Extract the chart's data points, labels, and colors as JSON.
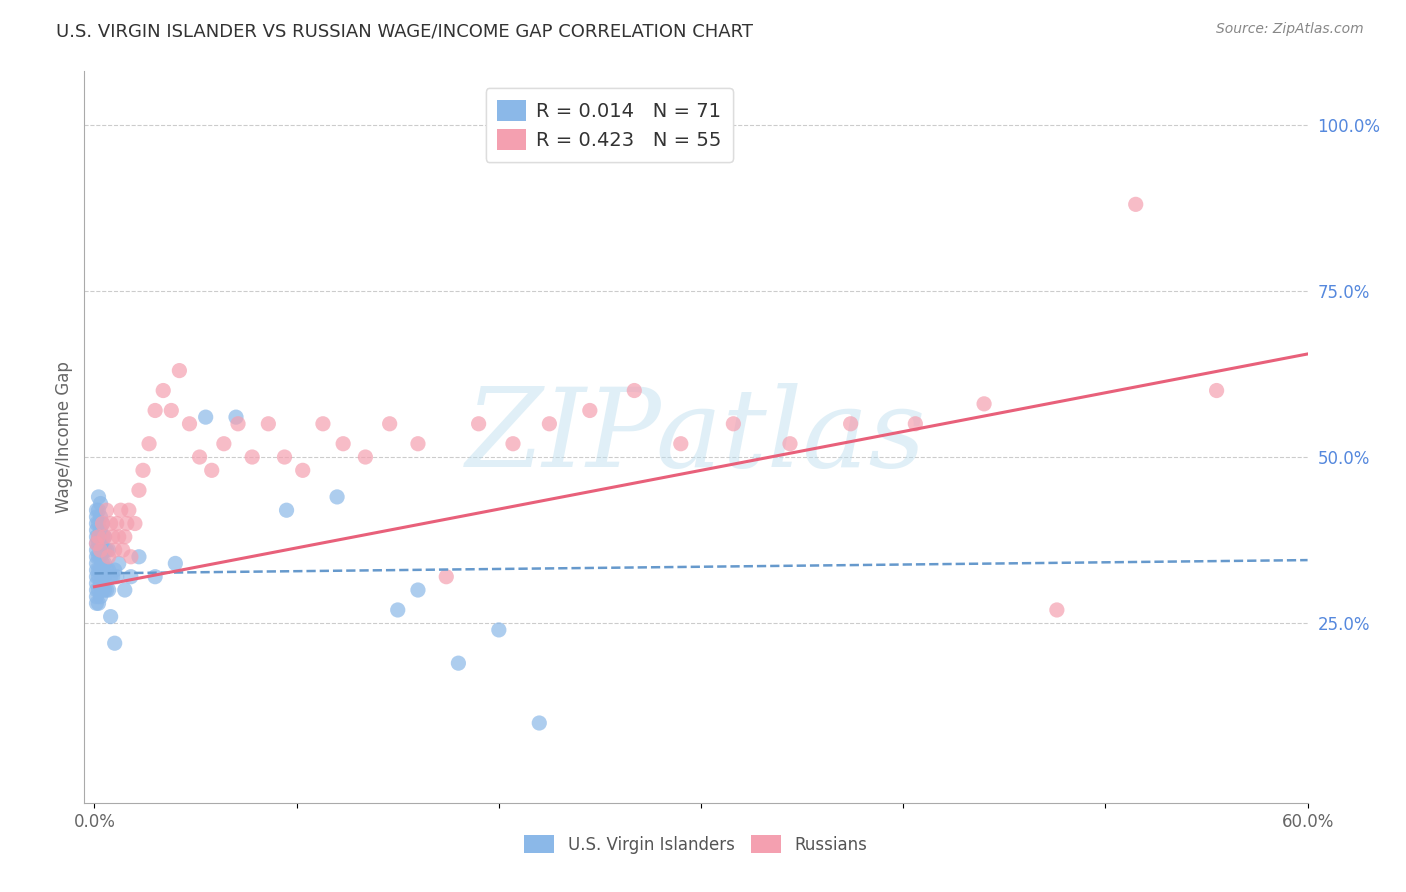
{
  "title": "U.S. VIRGIN ISLANDER VS RUSSIAN WAGE/INCOME GAP CORRELATION CHART",
  "source": "Source: ZipAtlas.com",
  "ylabel": "Wage/Income Gap",
  "xlim": [
    -0.005,
    0.6
  ],
  "ylim": [
    -0.02,
    1.08
  ],
  "x_ticks": [
    0.0,
    0.1,
    0.2,
    0.3,
    0.4,
    0.5,
    0.6
  ],
  "x_tick_labels": [
    "0.0%",
    "",
    "",
    "",
    "",
    "",
    "60.0%"
  ],
  "y_ticks_right": [
    0.25,
    0.5,
    0.75,
    1.0
  ],
  "y_tick_labels_right": [
    "25.0%",
    "50.0%",
    "75.0%",
    "100.0%"
  ],
  "legend_r1": "R = 0.014",
  "legend_n1": "N = 71",
  "legend_r2": "R = 0.423",
  "legend_n2": "N = 55",
  "color_blue": "#8BB8E8",
  "color_pink": "#F4A0B0",
  "color_blue_line": "#6699CC",
  "color_pink_line": "#E8607A",
  "watermark_text": "ZIPatlas",
  "background_color": "#FFFFFF",
  "grid_color": "#CCCCCC",
  "blue_scatter_x": [
    0.001,
    0.001,
    0.001,
    0.001,
    0.001,
    0.001,
    0.001,
    0.001,
    0.001,
    0.001,
    0.001,
    0.001,
    0.001,
    0.001,
    0.001,
    0.002,
    0.002,
    0.002,
    0.002,
    0.002,
    0.002,
    0.002,
    0.002,
    0.002,
    0.002,
    0.003,
    0.003,
    0.003,
    0.003,
    0.003,
    0.003,
    0.003,
    0.003,
    0.004,
    0.004,
    0.004,
    0.004,
    0.004,
    0.004,
    0.005,
    0.005,
    0.005,
    0.005,
    0.005,
    0.006,
    0.006,
    0.006,
    0.007,
    0.007,
    0.007,
    0.008,
    0.009,
    0.01,
    0.011,
    0.012,
    0.015,
    0.018,
    0.022,
    0.03,
    0.04,
    0.055,
    0.07,
    0.095,
    0.12,
    0.15,
    0.18,
    0.22,
    0.16,
    0.2,
    0.01,
    0.008
  ],
  "blue_scatter_y": [
    0.3,
    0.32,
    0.33,
    0.35,
    0.36,
    0.37,
    0.38,
    0.39,
    0.4,
    0.41,
    0.28,
    0.29,
    0.31,
    0.34,
    0.42,
    0.28,
    0.3,
    0.32,
    0.33,
    0.35,
    0.37,
    0.38,
    0.4,
    0.42,
    0.44,
    0.29,
    0.31,
    0.33,
    0.35,
    0.37,
    0.39,
    0.41,
    0.43,
    0.3,
    0.32,
    0.34,
    0.36,
    0.38,
    0.4,
    0.3,
    0.32,
    0.34,
    0.36,
    0.38,
    0.3,
    0.33,
    0.36,
    0.3,
    0.33,
    0.36,
    0.32,
    0.32,
    0.33,
    0.32,
    0.34,
    0.3,
    0.32,
    0.35,
    0.32,
    0.34,
    0.56,
    0.56,
    0.42,
    0.44,
    0.27,
    0.19,
    0.1,
    0.3,
    0.24,
    0.22,
    0.26
  ],
  "pink_scatter_x": [
    0.001,
    0.002,
    0.003,
    0.004,
    0.005,
    0.006,
    0.007,
    0.008,
    0.009,
    0.01,
    0.011,
    0.012,
    0.013,
    0.014,
    0.015,
    0.016,
    0.017,
    0.018,
    0.02,
    0.022,
    0.024,
    0.027,
    0.03,
    0.034,
    0.038,
    0.042,
    0.047,
    0.052,
    0.058,
    0.064,
    0.071,
    0.078,
    0.086,
    0.094,
    0.103,
    0.113,
    0.123,
    0.134,
    0.146,
    0.16,
    0.174,
    0.19,
    0.207,
    0.225,
    0.245,
    0.267,
    0.29,
    0.316,
    0.344,
    0.374,
    0.406,
    0.44,
    0.476,
    0.515,
    0.555
  ],
  "pink_scatter_y": [
    0.37,
    0.38,
    0.36,
    0.4,
    0.38,
    0.42,
    0.35,
    0.4,
    0.38,
    0.36,
    0.4,
    0.38,
    0.42,
    0.36,
    0.38,
    0.4,
    0.42,
    0.35,
    0.4,
    0.45,
    0.48,
    0.52,
    0.57,
    0.6,
    0.57,
    0.63,
    0.55,
    0.5,
    0.48,
    0.52,
    0.55,
    0.5,
    0.55,
    0.5,
    0.48,
    0.55,
    0.52,
    0.5,
    0.55,
    0.52,
    0.32,
    0.55,
    0.52,
    0.55,
    0.57,
    0.6,
    0.52,
    0.55,
    0.52,
    0.55,
    0.55,
    0.58,
    0.27,
    0.88,
    0.6
  ],
  "blue_trend": [
    0.325,
    0.345
  ],
  "pink_trend": [
    0.305,
    0.655
  ]
}
